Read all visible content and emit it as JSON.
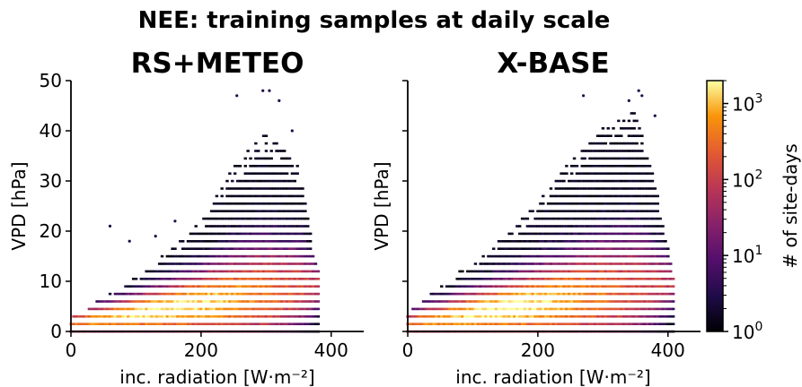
{
  "suptitle": "NEE: training samples at daily scale",
  "colorbar": {
    "label": "# of site-days",
    "scale": "log",
    "range": [
      1,
      2000
    ],
    "ticks": [
      {
        "value": 1,
        "base": "10",
        "exp": "0"
      },
      {
        "value": 10,
        "base": "10",
        "exp": "1"
      },
      {
        "value": 100,
        "base": "10",
        "exp": "2"
      },
      {
        "value": 1000,
        "base": "10",
        "exp": "3"
      }
    ],
    "colormap": "inferno"
  },
  "chart_data": [
    {
      "type": "heatmap",
      "subtype": "hexbin",
      "title": "RS+METEO",
      "xlabel": "inc. radiation [W·m⁻²]",
      "ylabel": "VPD [hPa]",
      "xlim": [
        0,
        450
      ],
      "ylim": [
        0,
        50
      ],
      "xticks": [
        0,
        200,
        400
      ],
      "yticks": [
        0,
        10,
        20,
        30,
        40,
        50
      ],
      "show_yticklabels": true,
      "max_vpd_envelope": [
        [
          0,
          3
        ],
        [
          50,
          7
        ],
        [
          100,
          11
        ],
        [
          150,
          16
        ],
        [
          200,
          22
        ],
        [
          250,
          33
        ],
        [
          300,
          40
        ],
        [
          350,
          33
        ],
        [
          380,
          12
        ]
      ],
      "outliers": [
        [
          255,
          47
        ],
        [
          295,
          48
        ],
        [
          305,
          48
        ],
        [
          320,
          46
        ],
        [
          340,
          40
        ],
        [
          160,
          22
        ],
        [
          130,
          19
        ],
        [
          90,
          18
        ],
        [
          60,
          21
        ]
      ]
    },
    {
      "type": "heatmap",
      "subtype": "hexbin",
      "title": "X-BASE",
      "xlabel": "inc. radiation [W·m⁻²]",
      "ylabel": "VPD [hPa]",
      "xlim": [
        0,
        450
      ],
      "ylim": [
        0,
        50
      ],
      "xticks": [
        0,
        200,
        400
      ],
      "yticks": [
        0,
        10,
        20,
        30,
        40,
        50
      ],
      "show_yticklabels": false,
      "max_vpd_envelope": [
        [
          0,
          4
        ],
        [
          50,
          9
        ],
        [
          100,
          14
        ],
        [
          150,
          19
        ],
        [
          200,
          26
        ],
        [
          250,
          34
        ],
        [
          300,
          41
        ],
        [
          350,
          44
        ],
        [
          380,
          30
        ],
        [
          410,
          10
        ]
      ],
      "outliers": [
        [
          270,
          47
        ],
        [
          355,
          48
        ],
        [
          340,
          46
        ],
        [
          360,
          47
        ],
        [
          380,
          43
        ]
      ]
    }
  ]
}
